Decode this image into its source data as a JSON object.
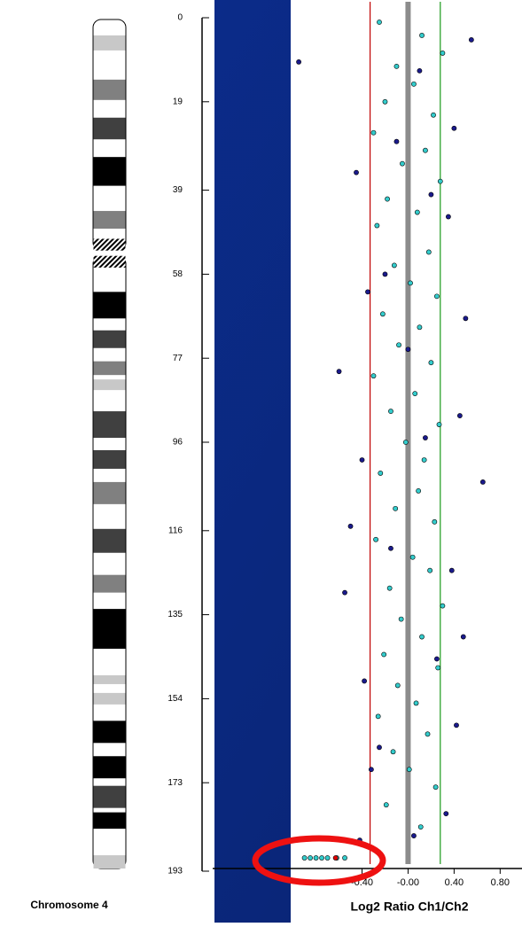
{
  "chart_data": [
    {
      "type": "ideogram",
      "title": "Chromosome 4",
      "ylim": [
        0,
        193
      ],
      "yticks": [
        0,
        19,
        39,
        58,
        77,
        96,
        116,
        135,
        154,
        173,
        193
      ],
      "centromere": [
        50,
        56.5
      ],
      "bands": [
        {
          "start": 4,
          "end": 7.4,
          "color": "#c8c8c8"
        },
        {
          "start": 14,
          "end": 18.6,
          "color": "#808080"
        },
        {
          "start": 22.6,
          "end": 27.5,
          "color": "#404040"
        },
        {
          "start": 31.5,
          "end": 38,
          "color": "#000000"
        },
        {
          "start": 43.7,
          "end": 47.7,
          "color": "#808080"
        },
        {
          "start": 62,
          "end": 68,
          "color": "#000000"
        },
        {
          "start": 70.7,
          "end": 74.7,
          "color": "#404040"
        },
        {
          "start": 77.7,
          "end": 80.8,
          "color": "#808080"
        },
        {
          "start": 81.8,
          "end": 84.2,
          "color": "#c8c8c8"
        },
        {
          "start": 89,
          "end": 95,
          "color": "#404040"
        },
        {
          "start": 97.8,
          "end": 102,
          "color": "#404040"
        },
        {
          "start": 105,
          "end": 110,
          "color": "#808080"
        },
        {
          "start": 115.6,
          "end": 121,
          "color": "#404040"
        },
        {
          "start": 126,
          "end": 130,
          "color": "#808080"
        },
        {
          "start": 133.7,
          "end": 142.7,
          "color": "#000000"
        },
        {
          "start": 148.7,
          "end": 150.7,
          "color": "#c8c8c8"
        },
        {
          "start": 152.7,
          "end": 155.3,
          "color": "#c8c8c8"
        },
        {
          "start": 159,
          "end": 164,
          "color": "#000000"
        },
        {
          "start": 167,
          "end": 172,
          "color": "#000000"
        },
        {
          "start": 173.7,
          "end": 178.7,
          "color": "#404040"
        },
        {
          "start": 179.7,
          "end": 183.4,
          "color": "#000000"
        },
        {
          "start": 189.4,
          "end": 192.4,
          "color": "#c8c8c8"
        }
      ]
    },
    {
      "type": "scatter",
      "xlabel": "Log2 Ratio Ch1/Ch2",
      "xlim": [
        -1.02,
        0.99
      ],
      "ylim": [
        0,
        193
      ],
      "xticks": [
        {
          "value": -0.4,
          "label": "-0.40"
        },
        {
          "value": 0,
          "label": "-0.00"
        },
        {
          "value": 0.4,
          "label": "0.40"
        },
        {
          "value": 0.8,
          "label": "0.80"
        }
      ],
      "lines": [
        {
          "x": -0.33,
          "color": "#c00000"
        },
        {
          "x": 0.28,
          "color": "#1a9a1a"
        },
        {
          "x": 0,
          "color": "#8c8c8c"
        }
      ],
      "series": [
        {
          "color": "#33cccc",
          "x": [
            -0.25,
            0.12,
            0.3,
            -0.1,
            0.05,
            -0.2,
            0.22,
            -0.3,
            0.15,
            -0.05,
            0.28,
            -0.18,
            0.08,
            -0.27,
            0.18,
            -0.12,
            0.02,
            0.25,
            -0.22,
            0.1,
            -0.08,
            0.2,
            -0.3,
            0.06,
            -0.15,
            0.27,
            -0.02,
            0.14,
            -0.24,
            0.09,
            -0.11,
            0.23,
            -0.28,
            0.04,
            0.19,
            -0.16,
            0.3,
            -0.06,
            0.12,
            -0.21,
            0.26,
            -0.09,
            0.07,
            -0.26,
            0.17,
            -0.13,
            0.01,
            0.24,
            -0.19,
            0.11,
            -0.9,
            -0.85,
            -0.8,
            -0.75,
            -0.7,
            -0.62,
            -0.55
          ],
          "y": [
            1,
            4,
            8,
            11,
            15,
            19,
            22,
            26,
            30,
            33,
            37,
            41,
            44,
            47,
            53,
            56,
            60,
            63,
            67,
            70,
            74,
            78,
            81,
            85,
            89,
            92,
            96,
            100,
            103,
            107,
            111,
            114,
            118,
            122,
            125,
            129,
            133,
            136,
            140,
            144,
            147,
            151,
            155,
            158,
            162,
            166,
            170,
            174,
            178,
            183,
            190,
            190,
            190,
            190,
            190,
            190,
            190
          ]
        },
        {
          "color": "#1a1a8c",
          "x": [
            0.55,
            -0.95,
            0.4,
            -0.45,
            0.35,
            -0.35,
            0.5,
            -0.6,
            0.45,
            -0.4,
            0.65,
            -0.5,
            0.38,
            -0.55,
            0.48,
            -0.38,
            0.42,
            -0.32,
            0.33,
            -0.42,
            0.1,
            -0.1,
            0.2,
            -0.2,
            0,
            0.15,
            -0.15,
            0.25,
            -0.25,
            0.05
          ],
          "y": [
            5,
            10,
            25,
            35,
            45,
            62,
            68,
            80,
            90,
            100,
            105,
            115,
            125,
            130,
            140,
            150,
            160,
            170,
            180,
            186,
            12,
            28,
            40,
            58,
            75,
            95,
            120,
            145,
            165,
            185
          ]
        },
        {
          "color": "#e00000",
          "x": [
            -0.63
          ],
          "y": [
            190
          ]
        }
      ]
    }
  ]
}
